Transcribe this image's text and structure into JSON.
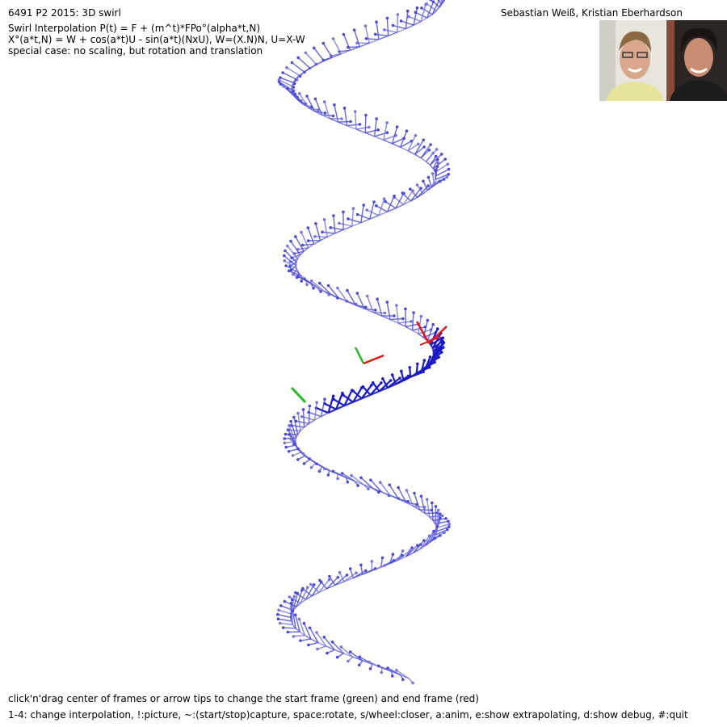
{
  "header": {
    "title": "6491 P2 2015: 3D swirl",
    "formula_lines": [
      "Swirl Interpolation P(t) = F + (m^t)*FPo°(alpha*t,N)",
      "X°(a*t,N) = W + cos(a*t)U - sin(a*t)(NxU), W=(X.N)N, U=X-W",
      "special case: no scaling, but rotation and translation"
    ],
    "authors": "Sebastian Weiß, Kristian Eberhardson"
  },
  "footer": {
    "instructions": "click'n'drag center of frames or arrow tips to change the start frame (green) and end frame (red)",
    "keys": "1-4: change interpolation, !:picture, ~:(start/stop)capture, space:rotate, s/wheel:closer, a:anim, e:show extrapolating, d:show debug, #:quit"
  },
  "colors": {
    "background": "#ffffff",
    "frame_arrow": "#4a4ad8",
    "frame_arrow_light": "#7474e2",
    "frame_arrow_dark": "#1a1ac4",
    "start_frame": "#22bb22",
    "end_frame": "#e01818"
  },
  "icons": {
    "photo_1": "author-photo-sebastian",
    "photo_2": "author-photo-kristian"
  }
}
